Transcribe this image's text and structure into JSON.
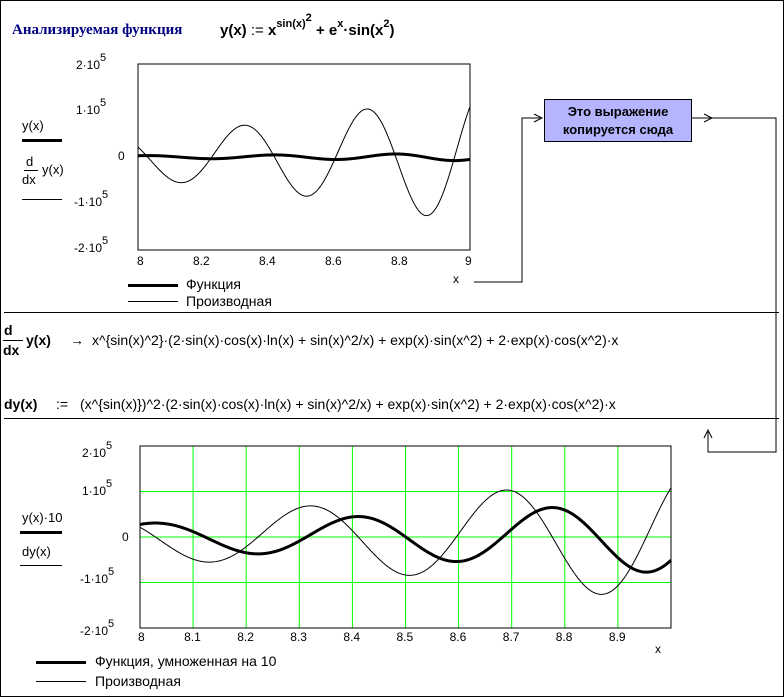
{
  "header": {
    "label": "Анализируемая функция",
    "definition_lhs": "y(x)",
    "assign_op": ":=",
    "base_x": "x",
    "exp_sin": "sin(x)",
    "exp_sq": "2",
    "plus": "+",
    "e": "e",
    "e_exp": "x",
    "times_sin": "·sin(x",
    "close": ")"
  },
  "callout": {
    "line1": "Это выражение",
    "line2": "копируется сюда"
  },
  "plot1": {
    "ylabel_top": "y(x)",
    "ylabel_d": "d",
    "ylabel_dx": "dx",
    "ylabel_bottom": "y(x)",
    "yticks": [
      "2·10",
      "1·10",
      "0",
      "-1·10",
      "-2·10"
    ],
    "ytick_exp": "5",
    "xticks": [
      "8",
      "8.2",
      "8.4",
      "8.6",
      "8.8",
      "9"
    ],
    "xlabel": "x",
    "legend": [
      "Функция",
      "Производная"
    ]
  },
  "formula1": {
    "d": "d",
    "dx": "dx",
    "lhs": "y(x)",
    "arrow": "→",
    "text": "x^{sin(x)^2}·(2·sin(x)·cos(x)·ln(x) + sin(x)^2/x) + exp(x)·sin(x^2) + 2·exp(x)·cos(x^2)·x"
  },
  "formula2": {
    "lhs": "dy(x)",
    "assign_op": ":=",
    "text": "(x^{sin(x)})^2·(2·sin(x)·cos(x)·ln(x) + sin(x)^2/x) + exp(x)·sin(x^2) + 2·exp(x)·cos(x^2)·x"
  },
  "plot2": {
    "ylabel_top": "y(x)·10",
    "ylabel_bottom": "dy(x)",
    "yticks": [
      "2·10",
      "1·10",
      "0",
      "-1·10",
      "-2·10"
    ],
    "ytick_exp": "5",
    "xticks": [
      "8",
      "8.1",
      "8.2",
      "8.3",
      "8.4",
      "8.5",
      "8.6",
      "8.7",
      "8.8",
      "8.9"
    ],
    "xlabel": "x",
    "legend": [
      "Функция, умноженная на 10",
      "Производная"
    ],
    "grid_color": "#00ff00"
  },
  "chart_data": [
    {
      "type": "line",
      "x": [
        8,
        9
      ],
      "xlim": [
        8,
        9
      ],
      "ylim": [
        -200000,
        200000
      ],
      "grid": false,
      "series": [
        {
          "name": "Функция",
          "expression": "x^(sin(x)^2) + e^x·sin(x^2)"
        },
        {
          "name": "Производная",
          "expression": "d/dx y(x)"
        }
      ]
    },
    {
      "type": "line",
      "x": [
        8,
        9
      ],
      "xlim": [
        8,
        9
      ],
      "ylim": [
        -200000,
        200000
      ],
      "grid": true,
      "series": [
        {
          "name": "Функция, умноженная на 10",
          "expression": "10·y(x)"
        },
        {
          "name": "Производная",
          "expression": "dy(x)"
        }
      ]
    }
  ]
}
